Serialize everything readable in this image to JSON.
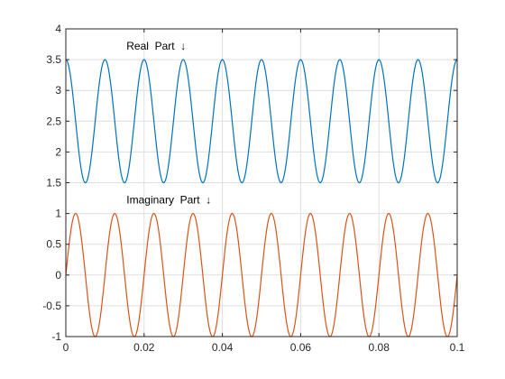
{
  "chart_data": {
    "type": "line",
    "title": "",
    "xlabel": "",
    "ylabel": "",
    "xlim": [
      0,
      0.1
    ],
    "ylim": [
      -1,
      4
    ],
    "grid": true,
    "x_ticks": [
      0,
      0.02,
      0.04,
      0.06,
      0.08,
      0.1
    ],
    "x_tick_labels": [
      "0",
      "0.02",
      "0.04",
      "0.06",
      "0.08",
      "0.1"
    ],
    "y_ticks": [
      -1,
      -0.5,
      0,
      0.5,
      1,
      1.5,
      2,
      2.5,
      3,
      3.5,
      4
    ],
    "y_tick_labels": [
      "-1",
      "-0.5",
      "0",
      "0.5",
      "1",
      "1.5",
      "2",
      "2.5",
      "3",
      "3.5",
      "4"
    ],
    "series": [
      {
        "color": "#0072BD",
        "equation": "y = 2.5 + cos(2*pi*100*x)",
        "frequency_hz": 100,
        "offset": 2.5,
        "amplitude": 1
      },
      {
        "color": "#D95319",
        "equation": "y = sin(2*pi*100*x)",
        "frequency_hz": 100,
        "offset": 0,
        "amplitude": 1
      }
    ],
    "annotations": [
      {
        "text": "Real  Part  ↓",
        "x": 0.0155,
        "y": 3.72
      },
      {
        "text": "Imaginary  Part  ↓",
        "x": 0.0155,
        "y": 1.22
      }
    ]
  }
}
